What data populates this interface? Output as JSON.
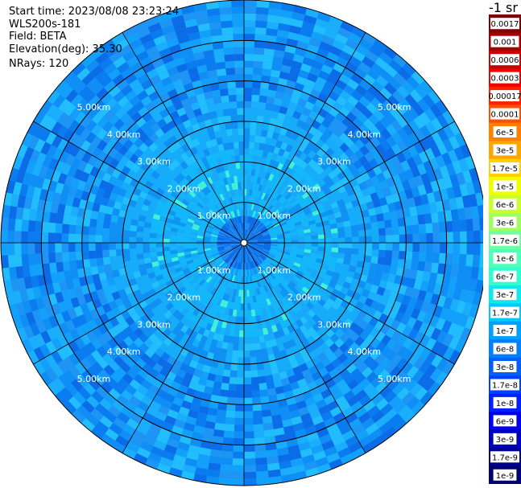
{
  "header": {
    "start_time": "Start time: 2023/08/08 23:23:24",
    "instrument": "WLS200s-181",
    "field": "Field: BETA",
    "elevation": "Elevation(deg): 35.30",
    "nrays": "NRays: 120"
  },
  "colorbar": {
    "title": "-1 sr",
    "labels": [
      "0.0017",
      "0.001",
      "0.0006",
      "0.0003",
      "0.00017",
      "0.0001",
      "6e-5",
      "3e-5",
      "1.7e-5",
      "1e-5",
      "6e-6",
      "3e-6",
      "1.7e-6",
      "1e-6",
      "6e-7",
      "3e-7",
      "1.7e-7",
      "1e-7",
      "6e-8",
      "3e-8",
      "1.7e-8",
      "1e-8",
      "6e-9",
      "3e-9",
      "1.7e-9",
      "1e-9"
    ],
    "colors": [
      "#7f0000",
      "#a50000",
      "#cc0000",
      "#ee0000",
      "#ff2000",
      "#ff5000",
      "#ff7f00",
      "#ffa500",
      "#ffd000",
      "#f0ff00",
      "#c8ff30",
      "#a0ff60",
      "#70ffa0",
      "#50ffb8",
      "#30ffd0",
      "#10e8f0",
      "#00c8ff",
      "#00a0ff",
      "#0080ff",
      "#0060ff",
      "#0040ff",
      "#0020ff",
      "#0000f0",
      "#0000c0",
      "#000090",
      "#000070"
    ]
  },
  "chart_data": {
    "type": "heatmap",
    "title": "",
    "projection": "polar PPI",
    "rays": 120,
    "range_rings_km": [
      1.0,
      2.0,
      3.0,
      4.0,
      5.0
    ],
    "ring_labels": [
      "1.00km",
      "2.00km",
      "3.00km",
      "4.00km",
      "5.00km"
    ],
    "max_range_km": 6.0,
    "spoke_angles_deg": [
      0,
      30,
      60,
      90,
      120,
      150
    ],
    "field": "BETA",
    "unit": "-1 sr",
    "dominant_range": "1e-7 to 6e-8",
    "near_center_value": "1.7e-8",
    "scale": "log"
  }
}
